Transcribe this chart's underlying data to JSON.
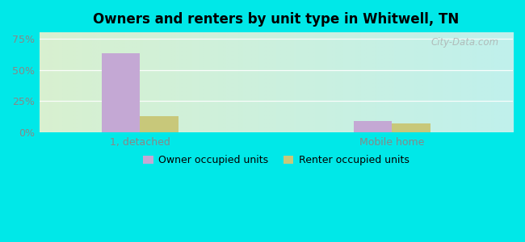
{
  "title": "Owners and renters by unit type in Whitwell, TN",
  "categories": [
    "1, detached",
    "Mobile home"
  ],
  "owner_values": [
    63,
    9
  ],
  "renter_values": [
    13,
    7
  ],
  "owner_color": "#c4a8d4",
  "renter_color": "#c8c87a",
  "yticks": [
    0,
    25,
    50,
    75
  ],
  "ylim": [
    0,
    80
  ],
  "bar_width": 0.38,
  "group_positions": [
    1.5,
    4.0
  ],
  "xlim": [
    0.5,
    5.2
  ],
  "watermark": "City-Data.com",
  "legend_labels": [
    "Owner occupied units",
    "Renter occupied units"
  ],
  "outer_bg": "#00e8e8",
  "grad_color_left": "#d8f0d0",
  "grad_color_right": "#c8f0ec",
  "tick_color": "#888888",
  "grid_color": "#e8e8e8"
}
